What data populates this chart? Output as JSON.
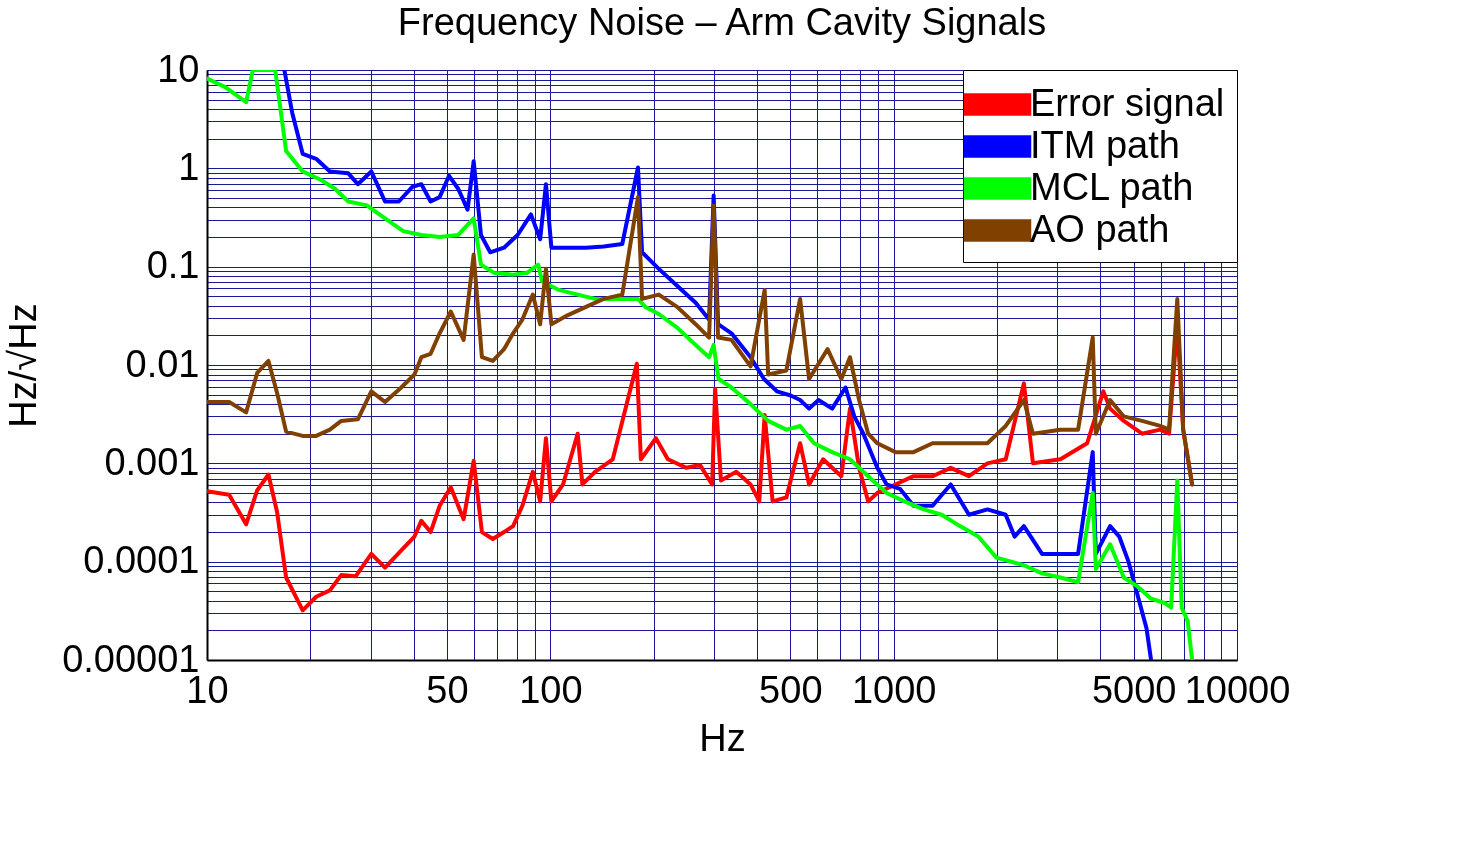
{
  "chart_data": {
    "type": "line",
    "title": "Frequency Noise – Arm Cavity Signals",
    "xlabel": "Hz",
    "ylabel": "Hz/√Hz",
    "log": "xy",
    "grid": true,
    "legend": "top right",
    "xlim": [
      10,
      10000
    ],
    "ylim": [
      1e-05,
      10
    ],
    "xticks": [
      10,
      {
        "value": 20,
        "label": null
      },
      {
        "value": 30,
        "label": null
      },
      {
        "value": 40,
        "label": null
      },
      50,
      {
        "value": 60,
        "label": null
      },
      {
        "value": 70,
        "label": null
      },
      {
        "value": 80,
        "label": null
      },
      {
        "value": 90,
        "label": null
      },
      100,
      {
        "value": 200,
        "label": null
      },
      {
        "value": 300,
        "label": null
      },
      {
        "value": 400,
        "label": null
      },
      500,
      {
        "value": 600,
        "label": null
      },
      {
        "value": 700,
        "label": null
      },
      {
        "value": 800,
        "label": null
      },
      {
        "value": 900,
        "label": null
      },
      1000,
      {
        "value": 2000,
        "label": null
      },
      {
        "value": 3000,
        "label": null
      },
      {
        "value": 4000,
        "label": null
      },
      5000,
      {
        "value": 6000,
        "label": null
      },
      {
        "value": 7000,
        "label": null
      },
      {
        "value": 8000,
        "label": null
      },
      {
        "value": 9000,
        "label": null
      },
      10000
    ],
    "yticks": [
      {
        "value": 1e-05,
        "label": "0.00001"
      },
      {
        "value": 2e-05,
        "label": null
      },
      {
        "value": 3e-05,
        "label": null
      },
      {
        "value": 4e-05,
        "label": null
      },
      {
        "value": 5e-05,
        "label": null
      },
      {
        "value": 6e-05,
        "label": null
      },
      {
        "value": 7e-05,
        "label": null
      },
      {
        "value": 8e-05,
        "label": null
      },
      {
        "value": 9e-05,
        "label": null
      },
      0.0001,
      {
        "value": 0.0002,
        "label": null
      },
      {
        "value": 0.0003,
        "label": null
      },
      {
        "value": 0.0004,
        "label": null
      },
      {
        "value": 0.0005,
        "label": null
      },
      {
        "value": 0.0006,
        "label": null
      },
      {
        "value": 0.0007,
        "label": null
      },
      {
        "value": 0.0008,
        "label": null
      },
      {
        "value": 0.0009,
        "label": null
      },
      0.001,
      {
        "value": 0.002,
        "label": null
      },
      {
        "value": 0.003,
        "label": null
      },
      {
        "value": 0.004,
        "label": null
      },
      {
        "value": 0.005,
        "label": null
      },
      {
        "value": 0.006,
        "label": null
      },
      {
        "value": 0.007,
        "label": null
      },
      {
        "value": 0.008,
        "label": null
      },
      {
        "value": 0.009,
        "label": null
      },
      0.01,
      {
        "value": 0.02,
        "label": null
      },
      {
        "value": 0.03,
        "label": null
      },
      {
        "value": 0.04,
        "label": null
      },
      {
        "value": 0.05,
        "label": null
      },
      {
        "value": 0.06,
        "label": null
      },
      {
        "value": 0.07,
        "label": null
      },
      {
        "value": 0.08,
        "label": null
      },
      {
        "value": 0.09,
        "label": null
      },
      0.1,
      {
        "value": 0.2,
        "label": null
      },
      {
        "value": 0.3,
        "label": null
      },
      {
        "value": 0.4,
        "label": null
      },
      {
        "value": 0.5,
        "label": null
      },
      {
        "value": 0.6,
        "label": null
      },
      {
        "value": 0.7,
        "label": null
      },
      {
        "value": 0.8,
        "label": null
      },
      {
        "value": 0.9,
        "label": null
      },
      1,
      {
        "value": 2,
        "label": null
      },
      {
        "value": 3,
        "label": null
      },
      {
        "value": 4,
        "label": null
      },
      {
        "value": 5,
        "label": null
      },
      {
        "value": 6,
        "label": null
      },
      {
        "value": 7,
        "label": null
      },
      {
        "value": 8,
        "label": null
      },
      {
        "value": 9,
        "label": null
      },
      10
    ],
    "series": [
      {
        "name": "Error signal",
        "color": "#ff0000",
        "x": [
          10,
          11.6,
          13,
          14,
          15.1,
          16,
          17,
          19,
          20.8,
          22.8,
          24.6,
          27.1,
          30.1,
          33,
          36.8,
          40.2,
          42.1,
          44.8,
          47.6,
          51.3,
          55.9,
          59.8,
          63.2,
          68,
          73.3,
          77.9,
          82.9,
          88.9,
          93.4,
          97.1,
          100.7,
          108.9,
          120.1,
          124,
          135,
          152,
          178.6,
          183.5,
          203,
          220,
          249,
          273,
          296,
          302,
          314,
          348,
          383,
          406,
          421,
          444,
          487,
          534,
          567,
          623,
          704,
          746,
          793,
          843,
          896,
          1012,
          1142,
          1298,
          1466,
          1657,
          1875,
          2120,
          2395,
          2545,
          3060,
          3660,
          4080,
          4270,
          4680,
          5290,
          5970,
          6340,
          6700,
          6970,
          7400
        ],
        "values": [
          0.00052,
          0.00048,
          0.00024,
          0.00053,
          0.00077,
          0.00032,
          6.9e-05,
          3.2e-05,
          4.4e-05,
          5.1e-05,
          7.3e-05,
          7.1e-05,
          0.00012,
          8.7e-05,
          0.00013,
          0.00018,
          0.00026,
          0.0002,
          0.00037,
          0.00057,
          0.00027,
          0.00106,
          0.0002,
          0.00017,
          0.0002,
          0.00023,
          0.00037,
          0.00082,
          0.00041,
          0.0018,
          0.00041,
          0.00061,
          0.002,
          0.00061,
          0.00082,
          0.0011,
          0.0103,
          0.0011,
          0.0018,
          0.0011,
          0.0009,
          0.00096,
          0.00061,
          0.0057,
          0.00067,
          0.00082,
          0.00061,
          0.00041,
          0.0031,
          0.00041,
          0.00045,
          0.0016,
          0.00061,
          0.0011,
          0.00074,
          0.0036,
          0.0009,
          0.00041,
          0.0005,
          0.00061,
          0.00074,
          0.00074,
          0.0009,
          0.00074,
          0.001,
          0.0011,
          0.0065,
          0.001,
          0.0011,
          0.0016,
          0.0054,
          0.0036,
          0.0027,
          0.002,
          0.0022,
          0.002,
          0.026,
          0.0022,
          0.00061
        ]
      },
      {
        "name": "ITM path",
        "color": "#0000ff",
        "x": [
          16.8,
          17.7,
          19,
          20.8,
          22.8,
          25.8,
          27.5,
          30.1,
          33,
          36.2,
          39.7,
          42.1,
          44.8,
          47.6,
          50.7,
          53.9,
          57.4,
          59.8,
          62.8,
          66.8,
          73.3,
          80.3,
          87.8,
          93.4,
          97.1,
          100.7,
          112.2,
          127,
          143,
          162,
          180,
          185,
          207,
          234,
          265,
          290,
          299,
          308,
          337,
          383,
          419,
          457,
          501,
          534,
          567,
          604,
          662,
          724,
          768,
          816,
          896,
          954,
          1043,
          1142,
          1298,
          1466,
          1657,
          1875,
          2120,
          2250,
          2395,
          2705,
          3060,
          3445,
          3800,
          3880,
          4270,
          4540,
          4830,
          5130,
          5450,
          5620
        ],
        "values": [
          10,
          3.7,
          1.4,
          1.25,
          0.93,
          0.89,
          0.69,
          0.93,
          0.46,
          0.46,
          0.65,
          0.69,
          0.46,
          0.51,
          0.84,
          0.62,
          0.38,
          1.18,
          0.21,
          0.14,
          0.156,
          0.21,
          0.34,
          0.19,
          0.69,
          0.156,
          0.156,
          0.156,
          0.16,
          0.17,
          1.02,
          0.14,
          0.095,
          0.064,
          0.043,
          0.029,
          0.53,
          0.026,
          0.021,
          0.012,
          0.0072,
          0.0054,
          0.0049,
          0.0044,
          0.0036,
          0.0044,
          0.0036,
          0.0059,
          0.003,
          0.002,
          0.0009,
          0.00061,
          0.00055,
          0.00037,
          0.00037,
          0.00061,
          0.0003,
          0.00034,
          0.0003,
          0.00018,
          0.00023,
          0.00012,
          0.00012,
          0.00012,
          0.0013,
          0.00012,
          0.00023,
          0.00018,
          0.0001,
          4.6e-05,
          2.1e-05,
          1e-05
        ]
      },
      {
        "name": "MCL path",
        "color": "#00ff00",
        "x": [
          10,
          11.3,
          13,
          13.6,
          15.8,
          17,
          19,
          21.5,
          23.6,
          25.8,
          29.2,
          33,
          37.3,
          42.1,
          47.6,
          53.9,
          59.8,
          62.8,
          68.8,
          77.9,
          85.3,
          92.2,
          94.6,
          105.8,
          120.1,
          135,
          152,
          180,
          189,
          207,
          234,
          265,
          290,
          299,
          309,
          337,
          383,
          431,
          487,
          534,
          586,
          662,
          746,
          843,
          954,
          1075,
          1223,
          1380,
          1560,
          1764,
          1992,
          2395,
          2705,
          3060,
          3445,
          3800,
          3880,
          4270,
          4680,
          5130,
          5620,
          6150,
          6430,
          6700,
          6900,
          7180,
          7400
        ],
        "values": [
          8.2,
          6.7,
          4.7,
          10,
          10,
          1.5,
          0.93,
          0.76,
          0.62,
          0.46,
          0.42,
          0.31,
          0.23,
          0.21,
          0.2,
          0.21,
          0.31,
          0.105,
          0.086,
          0.083,
          0.086,
          0.105,
          0.071,
          0.058,
          0.052,
          0.047,
          0.047,
          0.047,
          0.039,
          0.033,
          0.024,
          0.016,
          0.012,
          0.016,
          0.0072,
          0.0059,
          0.004,
          0.0027,
          0.0022,
          0.0024,
          0.0016,
          0.0013,
          0.0011,
          0.00074,
          0.0005,
          0.00041,
          0.00034,
          0.0003,
          0.00023,
          0.00018,
          0.00011,
          9.2e-05,
          7.6e-05,
          6.9e-05,
          6.2e-05,
          0.0005,
          8.4e-05,
          0.00015,
          6.9e-05,
          5.6e-05,
          4.2e-05,
          3.8e-05,
          3.4e-05,
          0.00067,
          3.4e-05,
          2.5e-05,
          1e-05
        ]
      },
      {
        "name": "AO path",
        "color": "#804000",
        "x": [
          10,
          11.6,
          13,
          14,
          15.1,
          16,
          17,
          19,
          20.8,
          22.8,
          24.6,
          27.5,
          30.1,
          33,
          36.8,
          40.2,
          42.1,
          44.8,
          47.6,
          51.3,
          55.9,
          59.8,
          63.2,
          68,
          73.3,
          77.9,
          82.9,
          88.9,
          93.4,
          97.1,
          100.7,
          112.2,
          127,
          143,
          162,
          180,
          185,
          207,
          234,
          265,
          290,
          299,
          308,
          337,
          383,
          421,
          431,
          487,
          534,
          567,
          642,
          704,
          746,
          793,
          843,
          896,
          1012,
          1142,
          1298,
          1466,
          1657,
          1875,
          2120,
          2395,
          2545,
          3060,
          3445,
          3800,
          3880,
          4270,
          4680,
          5290,
          5970,
          6340,
          6700,
          6970,
          7400
        ],
        "values": [
          0.0042,
          0.0042,
          0.0033,
          0.0083,
          0.011,
          0.0052,
          0.0021,
          0.0019,
          0.0019,
          0.0022,
          0.0027,
          0.0028,
          0.0054,
          0.0042,
          0.0059,
          0.008,
          0.012,
          0.013,
          0.021,
          0.035,
          0.018,
          0.133,
          0.012,
          0.011,
          0.0145,
          0.021,
          0.029,
          0.052,
          0.026,
          0.095,
          0.026,
          0.032,
          0.039,
          0.047,
          0.052,
          0.51,
          0.047,
          0.052,
          0.039,
          0.026,
          0.019,
          0.42,
          0.019,
          0.018,
          0.0097,
          0.058,
          0.008,
          0.0088,
          0.047,
          0.0072,
          0.0145,
          0.0072,
          0.012,
          0.0044,
          0.002,
          0.0016,
          0.0013,
          0.0013,
          0.0016,
          0.0016,
          0.0016,
          0.0016,
          0.0024,
          0.0044,
          0.002,
          0.0022,
          0.0022,
          0.019,
          0.002,
          0.0044,
          0.003,
          0.0027,
          0.0024,
          0.0022,
          0.047,
          0.0022,
          0.00061
        ]
      }
    ]
  }
}
